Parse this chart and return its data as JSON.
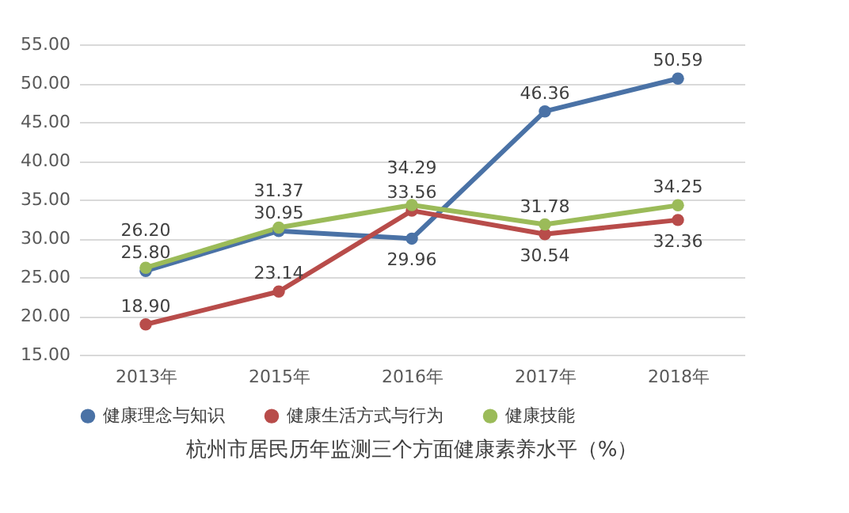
{
  "chart_data": {
    "type": "line",
    "title": "杭州市居民历年监测三个方面健康素养水平（%）",
    "categories": [
      "2013年",
      "2015年",
      "2016年",
      "2017年",
      "2018年"
    ],
    "series": [
      {
        "name": "健康理念与知识",
        "color": "#4a72a6",
        "values": [
          25.8,
          30.95,
          29.96,
          46.36,
          50.59
        ],
        "value_labels": [
          "25.80",
          "30.95",
          "29.96",
          "46.36",
          "50.59"
        ]
      },
      {
        "name": "健康生活方式与行为",
        "color": "#b84c4a",
        "values": [
          18.9,
          23.14,
          33.56,
          30.54,
          32.36
        ],
        "value_labels": [
          "18.90",
          "23.14",
          "33.56",
          "30.54",
          "32.36"
        ]
      },
      {
        "name": "健康技能",
        "color": "#9bbb59",
        "values": [
          26.2,
          31.37,
          34.29,
          31.78,
          34.25
        ],
        "value_labels": [
          "26.20",
          "31.37",
          "34.29",
          "31.78",
          "34.25"
        ]
      }
    ],
    "ylim": [
      15,
      55
    ],
    "yticks": [
      {
        "value": 15,
        "label": "15.00"
      },
      {
        "value": 20,
        "label": "20.00"
      },
      {
        "value": 25,
        "label": "25.00"
      },
      {
        "value": 30,
        "label": "30.00"
      },
      {
        "value": 35,
        "label": "35.00"
      },
      {
        "value": 40,
        "label": "40.00"
      },
      {
        "value": 45,
        "label": "45.00"
      },
      {
        "value": 50,
        "label": "50.00"
      },
      {
        "value": 55,
        "label": "55.00"
      }
    ],
    "grid": "y",
    "legend": "bottom",
    "marker": "circle",
    "line_style": "solid"
  }
}
